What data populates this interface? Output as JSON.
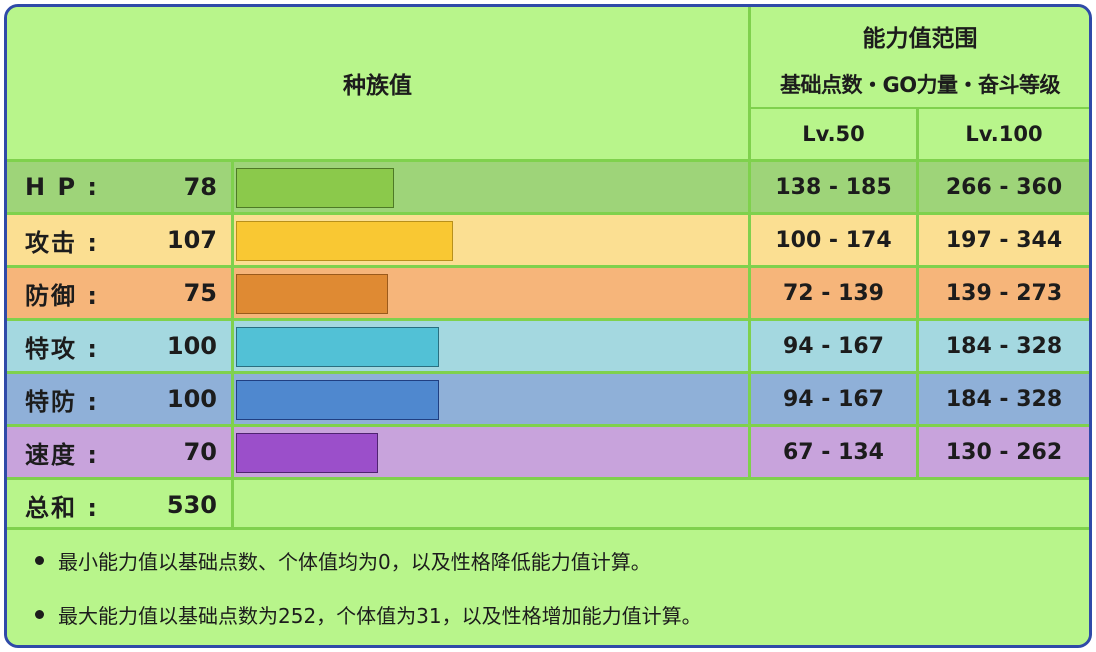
{
  "header": {
    "base_stats_title": "种族值",
    "range_title": "能力值范围",
    "range_subtitle": "基础点数・GO力量・奋斗等级",
    "lv50": "Lv.50",
    "lv100": "Lv.100"
  },
  "stats": [
    {
      "label": "H P :",
      "value": "78",
      "base": 78,
      "lv50": "138 - 185",
      "lv100": "266 - 360",
      "row_color": "#9ed479",
      "bar_color": "#8bc94b",
      "bar_border": "#4e7a26"
    },
    {
      "label": "攻击 :",
      "value": "107",
      "base": 107,
      "lv50": "100 - 174",
      "lv100": "197 - 344",
      "row_color": "#fbdf92",
      "bar_color": "#f9c833",
      "bar_border": "#b8901a"
    },
    {
      "label": "防御 :",
      "value": "75",
      "base": 75,
      "lv50": "72 - 139",
      "lv100": "139 - 273",
      "row_color": "#f6b57a",
      "bar_color": "#df8a33",
      "bar_border": "#9a5a1c"
    },
    {
      "label": "特攻 :",
      "value": "100",
      "base": 100,
      "lv50": "94 - 167",
      "lv100": "184 - 328",
      "row_color": "#a4d8e0",
      "bar_color": "#52c1d6",
      "bar_border": "#2a6f80"
    },
    {
      "label": "特防 :",
      "value": "100",
      "base": 100,
      "lv50": "94 - 167",
      "lv100": "184 - 328",
      "row_color": "#8fb0d8",
      "bar_color": "#4f88cf",
      "bar_border": "#203f82"
    },
    {
      "label": "速度 :",
      "value": "70",
      "base": 70,
      "lv50": "67 - 134",
      "lv100": "130 - 262",
      "row_color": "#c8a3dc",
      "bar_color": "#9b4fca",
      "bar_border": "#4f2370"
    }
  ],
  "total": {
    "label": "总和 :",
    "value": "530"
  },
  "notes": [
    "最小能力值以基础点数、个体值均为0，以及性格降低能力值计算。",
    "最大能力值以基础点数为252，个体值为31，以及性格增加能力值计算。"
  ]
}
